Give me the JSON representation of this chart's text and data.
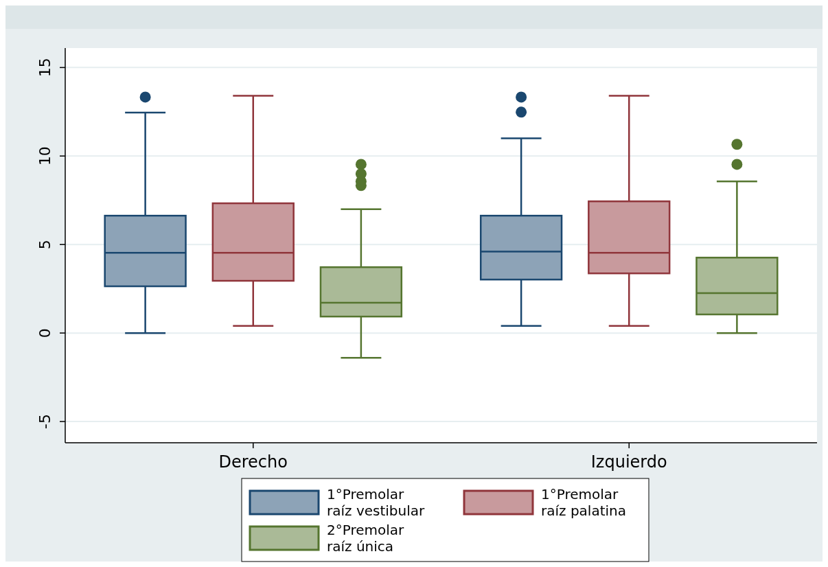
{
  "chart_data": {
    "type": "box",
    "categories": [
      "Derecho",
      "Izquierdo"
    ],
    "series": [
      {
        "name": "1°Premolar raíz vestibular",
        "color": "#1a476f",
        "boxes": [
          {
            "low": 0,
            "q1": 2.64,
            "median": 4.53,
            "q3": 6.63,
            "high": 12.45,
            "outliers": [
              13.33
            ]
          },
          {
            "low": 0.4,
            "q1": 3.02,
            "median": 4.6,
            "q3": 6.63,
            "high": 11.0,
            "outliers": [
              13.33,
              12.48
            ]
          }
        ]
      },
      {
        "name": "1°Premolar raíz palatina",
        "color": "#90353b",
        "boxes": [
          {
            "low": 0.4,
            "q1": 2.95,
            "median": 4.53,
            "q3": 7.33,
            "high": 13.4
          },
          {
            "low": 0.4,
            "q1": 3.37,
            "median": 4.53,
            "q3": 7.44,
            "high": 13.4
          }
        ]
      },
      {
        "name": "2°Premolar raíz única",
        "color": "#55752f",
        "boxes": [
          {
            "low": -1.4,
            "q1": 0.93,
            "median": 1.71,
            "q3": 3.72,
            "high": 7.0,
            "outliers": [
              9.53,
              9.0,
              8.57,
              8.33
            ]
          },
          {
            "low": 0,
            "q1": 1.05,
            "median": 2.25,
            "q3": 4.26,
            "high": 8.57,
            "outliers": [
              10.66,
              9.53
            ]
          }
        ]
      }
    ],
    "ylim": [
      -6.2,
      16.1
    ],
    "yticks": [
      -5,
      0,
      5,
      10,
      15
    ],
    "grid": "y",
    "legend": "bottom"
  }
}
